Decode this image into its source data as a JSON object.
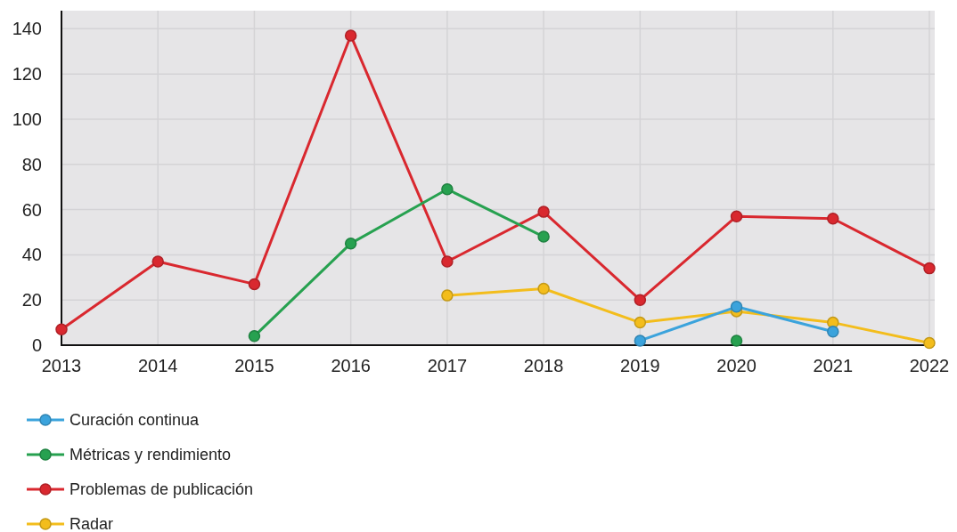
{
  "chart_data": {
    "type": "line",
    "categories": [
      "2013",
      "2014",
      "2015",
      "2016",
      "2017",
      "2018",
      "2019",
      "2020",
      "2021",
      "2022"
    ],
    "series": [
      {
        "name": "Curación continua",
        "color": "#3ba3dc",
        "values": [
          null,
          null,
          null,
          null,
          null,
          null,
          2,
          17,
          6,
          null
        ]
      },
      {
        "name": "Métricas y rendimiento",
        "color": "#27a150",
        "values": [
          null,
          null,
          4,
          45,
          69,
          48,
          null,
          2,
          null,
          null
        ]
      },
      {
        "name": "Problemas de publicación",
        "color": "#d9282f",
        "values": [
          7,
          37,
          27,
          137,
          37,
          59,
          20,
          57,
          56,
          34
        ]
      },
      {
        "name": "Radar",
        "color": "#f3bd1c",
        "values": [
          null,
          null,
          null,
          null,
          22,
          25,
          10,
          15,
          10,
          1
        ]
      }
    ],
    "ylim": [
      0,
      148
    ],
    "yticks": [
      0,
      20,
      40,
      60,
      80,
      100,
      120,
      140
    ],
    "grid": true,
    "legend": "bottom left",
    "marker": "circle",
    "line_style": "solid"
  }
}
